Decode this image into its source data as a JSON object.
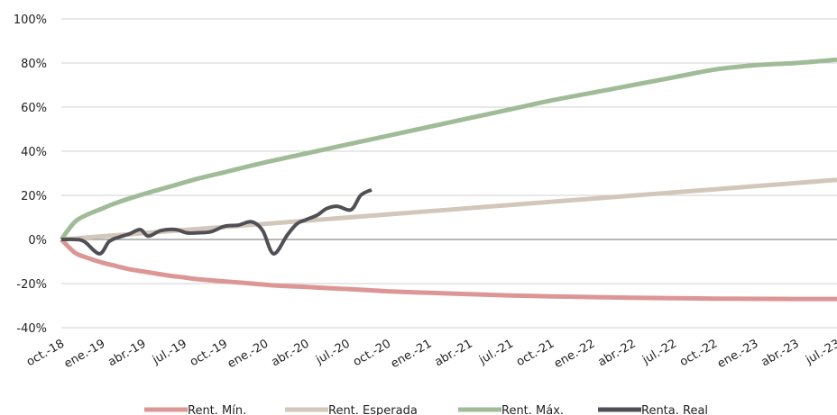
{
  "chart_data": {
    "type": "line",
    "title": "",
    "xlabel": "",
    "ylabel": "",
    "ylim": [
      -0.4,
      1.0
    ],
    "yticks": [
      -0.4,
      -0.2,
      0,
      0.2,
      0.4,
      0.6,
      0.8,
      1.0
    ],
    "ytick_labels": [
      "-40%",
      "-20%",
      "0%",
      "20%",
      "40%",
      "60%",
      "80%",
      "100%"
    ],
    "grid": "horizontal",
    "legend": "bottom",
    "x_tick_labels": [
      "oct.-18",
      "ene.-19",
      "abr.-19",
      "jul.-19",
      "oct.-19",
      "ene.-20",
      "abr.-20",
      "jul.-20",
      "oct.-20",
      "ene.-21",
      "abr.-21",
      "jul.-21",
      "oct.-21",
      "ene.-22",
      "abr.-22",
      "jul.-22",
      "oct.-22",
      "ene.-23",
      "abr.-23",
      "jul.-23"
    ],
    "series": [
      {
        "name": "Rent. Mín.",
        "color": "#dc9696",
        "x": [
          0,
          1,
          2,
          3,
          4,
          5,
          6,
          7,
          8,
          9,
          10,
          12,
          14,
          16,
          18,
          20,
          22,
          24,
          27,
          30,
          33,
          36,
          42,
          48,
          54,
          57
        ],
        "values": [
          0,
          -0.06,
          -0.085,
          -0.105,
          -0.12,
          -0.135,
          -0.145,
          -0.155,
          -0.165,
          -0.172,
          -0.18,
          -0.19,
          -0.2,
          -0.21,
          -0.215,
          -0.222,
          -0.228,
          -0.235,
          -0.242,
          -0.248,
          -0.254,
          -0.258,
          -0.264,
          -0.268,
          -0.27,
          -0.27
        ]
      },
      {
        "name": "Rent. Esperada",
        "color": "#d3c7bb",
        "x": [
          0,
          57
        ],
        "values": [
          0,
          0.27
        ]
      },
      {
        "name": "Rent. Máx.",
        "color": "#a0bb98",
        "x": [
          0,
          1,
          2,
          3,
          4,
          6,
          8,
          10,
          12,
          15,
          18,
          21,
          24,
          27,
          30,
          33,
          36,
          39,
          42,
          45,
          48,
          51,
          54,
          57
        ],
        "values": [
          0,
          0.08,
          0.115,
          0.14,
          0.165,
          0.205,
          0.24,
          0.275,
          0.305,
          0.35,
          0.39,
          0.43,
          0.47,
          0.51,
          0.55,
          0.59,
          0.63,
          0.665,
          0.7,
          0.735,
          0.77,
          0.79,
          0.8,
          0.815
        ]
      },
      {
        "name": "Renta. Real",
        "color": "#4f4f55",
        "x": [
          0,
          1,
          1.7,
          2.8,
          3.5,
          4.2,
          5,
          5.8,
          6.4,
          7.3,
          8.4,
          9.2,
          10,
          11,
          12,
          13,
          14,
          14.8,
          15.6,
          16.6,
          17.3,
          18,
          18.8,
          19.5,
          20.3,
          21.3,
          22,
          22.8,
          23.8,
          24.6,
          25.3
        ],
        "values": [
          0,
          0,
          -0.01,
          -0.065,
          -0.01,
          0.01,
          0.025,
          0.045,
          0.015,
          0.04,
          0.045,
          0.03,
          0.03,
          0.035,
          0.06,
          0.065,
          0.08,
          0.04,
          -0.065,
          0.02,
          0.07,
          0.09,
          0.11,
          0.14,
          0.15,
          0.135,
          0.2,
          0.225,
          null,
          null,
          null
        ]
      }
    ]
  }
}
